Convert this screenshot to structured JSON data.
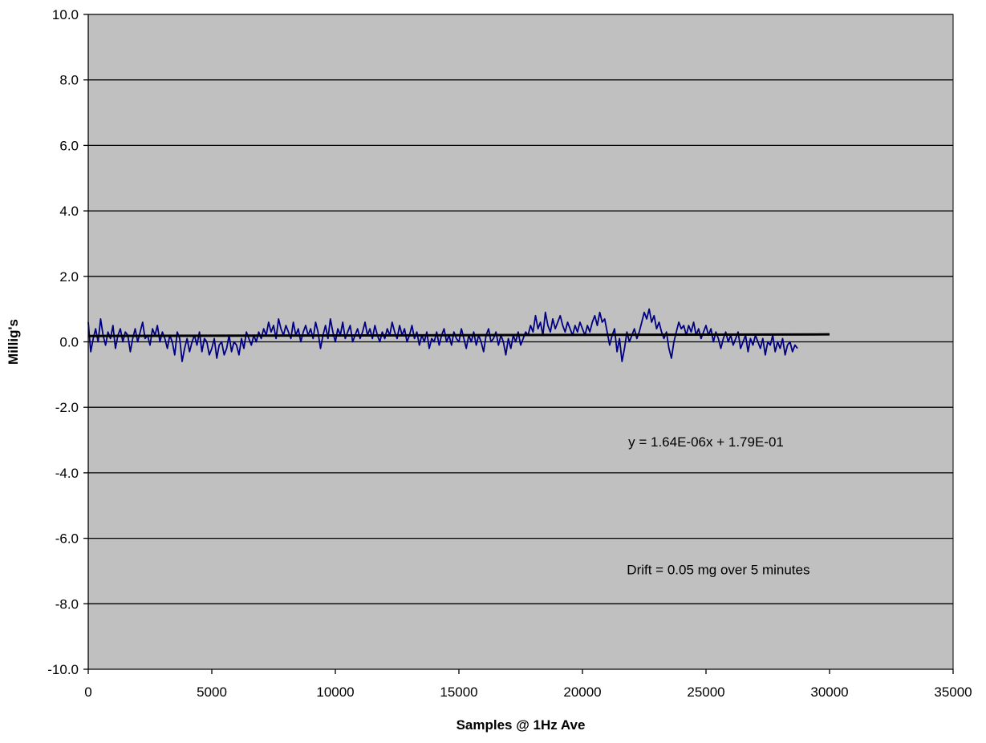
{
  "chart_data": {
    "type": "line",
    "title": "",
    "xlabel": "Samples @ 1Hz Ave",
    "ylabel": "Millig's",
    "xlim": [
      0,
      35000
    ],
    "ylim": [
      -10,
      10
    ],
    "x_ticks": [
      0,
      5000,
      10000,
      15000,
      20000,
      25000,
      30000,
      35000
    ],
    "y_ticks": [
      10,
      8,
      6,
      4,
      2,
      0,
      -2,
      -4,
      -6,
      -8,
      -10
    ],
    "x_tick_labels": [
      "0",
      "5000",
      "10000",
      "15000",
      "20000",
      "25000",
      "30000",
      "35000"
    ],
    "y_tick_labels": [
      "10.0",
      "8.0",
      "6.0",
      "4.0",
      "2.0",
      "0.0",
      "-2.0",
      "-4.0",
      "-6.0",
      "-8.0",
      "-10.0"
    ],
    "grid": "horizontal",
    "legend": "none",
    "series": [
      {
        "kind": "measurement",
        "color": "#000080",
        "x_start": 0,
        "x_step": 100,
        "values": [
          0.6,
          -0.3,
          0.1,
          0.4,
          0.0,
          0.7,
          0.2,
          -0.1,
          0.3,
          0.1,
          0.5,
          -0.2,
          0.2,
          0.4,
          0.0,
          0.3,
          0.2,
          -0.3,
          0.1,
          0.4,
          0.0,
          0.3,
          0.6,
          0.1,
          0.2,
          -0.1,
          0.4,
          0.2,
          0.5,
          0.0,
          0.3,
          0.1,
          -0.2,
          0.2,
          0.0,
          -0.4,
          0.3,
          0.1,
          -0.6,
          -0.2,
          0.1,
          -0.3,
          0.0,
          0.2,
          -0.1,
          0.3,
          -0.3,
          0.1,
          0.0,
          -0.4,
          -0.2,
          0.1,
          -0.5,
          -0.1,
          0.0,
          -0.4,
          -0.2,
          0.2,
          -0.3,
          0.0,
          -0.1,
          -0.4,
          0.1,
          -0.2,
          0.3,
          0.1,
          -0.1,
          0.2,
          0.0,
          0.3,
          0.1,
          0.4,
          0.2,
          0.6,
          0.3,
          0.5,
          0.1,
          0.7,
          0.4,
          0.2,
          0.5,
          0.3,
          0.1,
          0.6,
          0.2,
          0.4,
          0.0,
          0.3,
          0.5,
          0.2,
          0.4,
          0.1,
          0.6,
          0.3,
          -0.2,
          0.2,
          0.5,
          0.1,
          0.7,
          0.3,
          0.0,
          0.4,
          0.2,
          0.6,
          0.1,
          0.3,
          0.5,
          0.0,
          0.2,
          0.4,
          0.1,
          0.3,
          0.6,
          0.2,
          0.4,
          0.1,
          0.5,
          0.2,
          0.0,
          0.3,
          0.1,
          0.4,
          0.2,
          0.6,
          0.3,
          0.1,
          0.5,
          0.2,
          0.4,
          0.0,
          0.2,
          0.5,
          0.1,
          0.3,
          -0.1,
          0.2,
          0.0,
          0.3,
          -0.2,
          0.1,
          0.0,
          0.3,
          -0.1,
          0.2,
          0.4,
          0.0,
          0.2,
          -0.1,
          0.3,
          0.1,
          0.0,
          0.4,
          0.1,
          -0.2,
          0.2,
          0.0,
          0.3,
          -0.1,
          0.2,
          0.0,
          -0.3,
          0.2,
          0.4,
          0.0,
          0.1,
          0.3,
          -0.1,
          0.2,
          0.0,
          -0.4,
          0.1,
          -0.2,
          0.2,
          0.0,
          0.3,
          -0.1,
          0.1,
          0.3,
          0.2,
          0.5,
          0.3,
          0.8,
          0.4,
          0.6,
          0.2,
          0.9,
          0.5,
          0.3,
          0.7,
          0.4,
          0.6,
          0.8,
          0.5,
          0.3,
          0.6,
          0.4,
          0.2,
          0.5,
          0.3,
          0.6,
          0.4,
          0.2,
          0.5,
          0.3,
          0.6,
          0.8,
          0.5,
          0.9,
          0.6,
          0.7,
          0.3,
          -0.1,
          0.2,
          0.4,
          -0.3,
          0.1,
          -0.6,
          -0.2,
          0.3,
          0.0,
          0.2,
          0.4,
          0.1,
          0.3,
          0.6,
          0.9,
          0.7,
          1.0,
          0.6,
          0.8,
          0.4,
          0.6,
          0.3,
          0.1,
          0.3,
          -0.2,
          -0.5,
          0.0,
          0.3,
          0.6,
          0.4,
          0.5,
          0.2,
          0.5,
          0.3,
          0.6,
          0.2,
          0.4,
          0.1,
          0.3,
          0.5,
          0.2,
          0.4,
          0.0,
          0.3,
          0.1,
          -0.2,
          0.1,
          0.3,
          0.0,
          0.2,
          -0.1,
          0.1,
          0.3,
          -0.2,
          0.0,
          0.2,
          -0.3,
          0.1,
          -0.1,
          0.2,
          0.0,
          -0.2,
          0.1,
          -0.4,
          0.0,
          -0.1,
          0.2,
          -0.3,
          0.0,
          -0.2,
          0.1,
          -0.4,
          -0.1,
          0.0,
          -0.3,
          -0.1,
          -0.2
        ]
      },
      {
        "kind": "trendline",
        "color": "#000000",
        "equation": "y = 1.64E-06x + 1.79E-01",
        "slope": 1.64e-06,
        "intercept": 0.179,
        "x_range": [
          0,
          30000
        ]
      }
    ],
    "annotations": [
      {
        "text": "y = 1.64E-06x + 1.79E-01",
        "x": 25000,
        "y": -3.2
      },
      {
        "text": "Drift = 0.05 mg over 5 minutes",
        "x": 25500,
        "y": -7.1
      }
    ],
    "colors": {
      "plot_background": "#C0C0C0",
      "gridline": "#000000",
      "axis": "#000000"
    }
  }
}
